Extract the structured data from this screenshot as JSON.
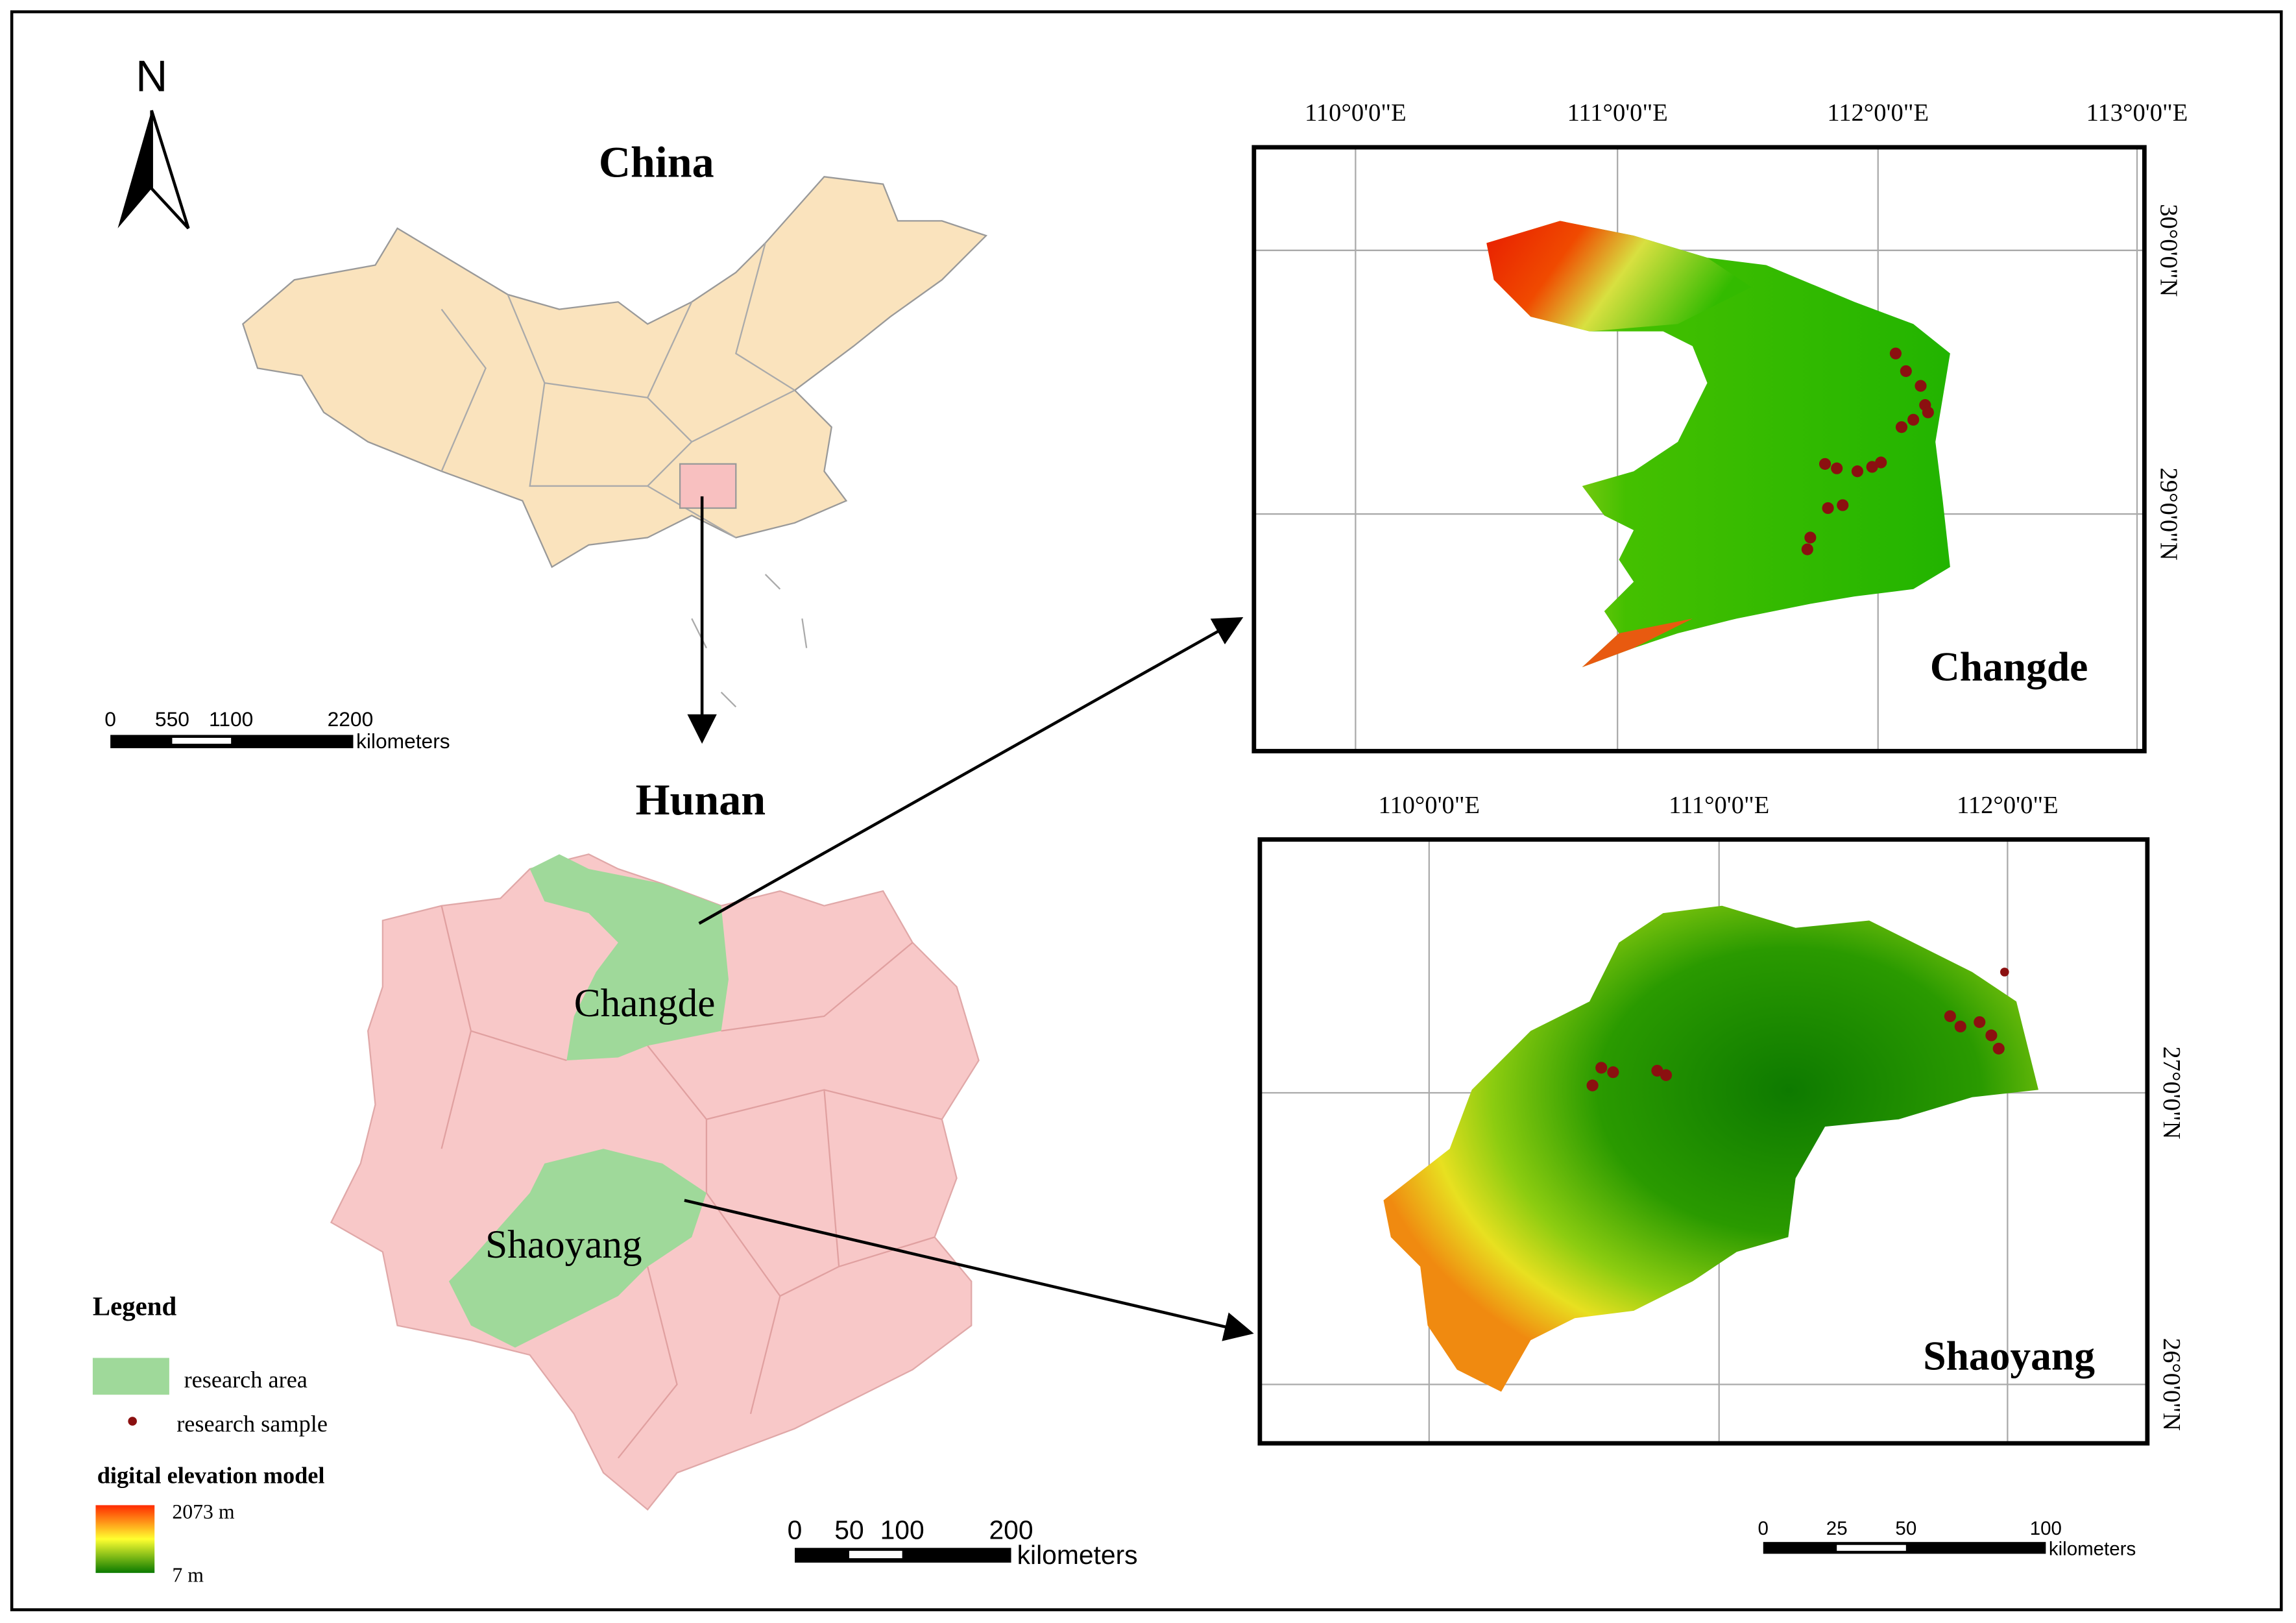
{
  "north_arrow": "N",
  "china": {
    "title": "China",
    "scale": {
      "ticks": [
        "0",
        "550",
        "1100",
        "2200"
      ],
      "unit": "kilometers"
    }
  },
  "hunan": {
    "title": "Hunan",
    "regions": [
      "Changde",
      "Shaoyang"
    ],
    "scale": {
      "ticks": [
        "0",
        "50",
        "100",
        "200"
      ],
      "unit": "kilometers"
    }
  },
  "changde_map": {
    "title": "Changde",
    "lon_labels": [
      "110°0'0\"E",
      "111°0'0\"E",
      "112°0'0\"E",
      "113°0'0\"E"
    ],
    "lat_labels": [
      "30°0'0\"N",
      "29°0'0\"N"
    ]
  },
  "shaoyang_map": {
    "title": "Shaoyang",
    "lon_labels": [
      "110°0'0\"E",
      "111°0'0\"E",
      "112°0'0\"E"
    ],
    "lat_labels": [
      "27°0'0\"N",
      "26°0'0\"N"
    ],
    "scale": {
      "ticks": [
        "0",
        "25",
        "50",
        "100"
      ],
      "unit": "kilometers"
    }
  },
  "legend": {
    "title": "Legend",
    "items": [
      "research area",
      "research sample"
    ],
    "dem_title": "digital elevation model",
    "dem_max": "2073 m",
    "dem_min": "7 m"
  }
}
